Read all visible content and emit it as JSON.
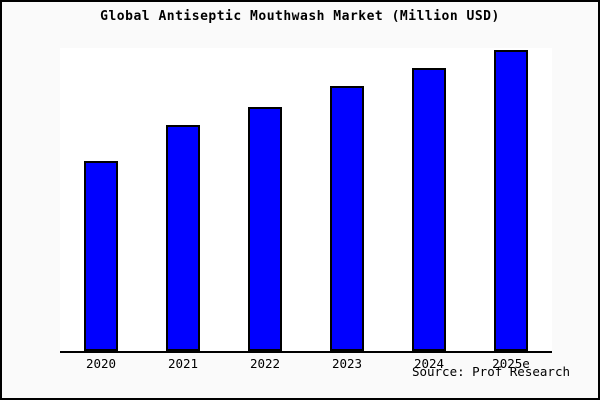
{
  "chart_data": {
    "type": "bar",
    "title": "Global Antiseptic Mouthwash Market (Million USD)",
    "categories": [
      "2020",
      "2021",
      "2022",
      "2023",
      "2024",
      "2025e"
    ],
    "values": [
      63,
      75,
      81,
      88,
      94,
      100
    ],
    "values_note": "No y-axis, gridlines, or data labels are shown in the image; values are relative bar heights expressed as percent of the tallest bar (2025e = 100).",
    "xlabel": "",
    "ylabel": "",
    "ylim": [
      0,
      100
    ],
    "grid": false,
    "legend": "none",
    "y_axis_ticks_shown": false,
    "bar_fill_color": "#0000ff",
    "bar_border_color": "#000000",
    "axis_line_color": "#000000",
    "plot_background": "#ffffff",
    "canvas_background": "#fafafa",
    "frame_color": "#000000",
    "source_label": "Source: Prof Research"
  }
}
